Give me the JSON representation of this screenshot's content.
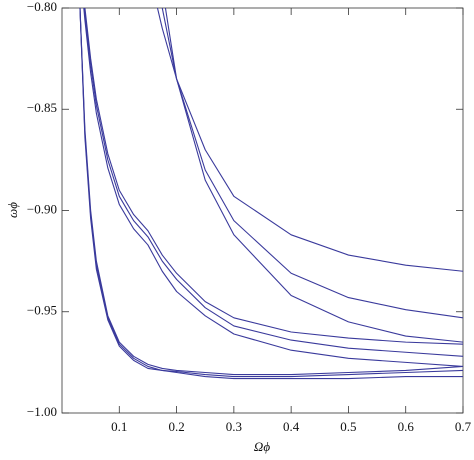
{
  "chart_data": {
    "type": "line",
    "x_label": "Ωϕ",
    "y_label": "ωϕ",
    "x": [
      0.03,
      0.04,
      0.05,
      0.06,
      0.08,
      0.1,
      0.125,
      0.15,
      0.175,
      0.2,
      0.25,
      0.3,
      0.4,
      0.5,
      0.6,
      0.7
    ],
    "series": [
      {
        "color": "#3a3a9c",
        "values": [
          -0.79,
          -0.86,
          -0.9,
          -0.925,
          -0.952,
          -0.965,
          -0.972,
          -0.976,
          -0.978,
          -0.979,
          -0.98,
          -0.981,
          -0.981,
          -0.98,
          -0.979,
          -0.977
        ]
      },
      {
        "color": "#3a3a9c",
        "values": [
          -0.79,
          -0.862,
          -0.902,
          -0.927,
          -0.953,
          -0.966,
          -0.973,
          -0.977,
          -0.979,
          -0.9795,
          -0.981,
          -0.982,
          -0.982,
          -0.981,
          -0.98,
          -0.979
        ]
      },
      {
        "color": "#3a3a9c",
        "values": [
          -0.79,
          -0.864,
          -0.904,
          -0.929,
          -0.954,
          -0.967,
          -0.974,
          -0.978,
          -0.979,
          -0.98,
          -0.982,
          -0.983,
          -0.983,
          -0.983,
          -0.982,
          -0.982
        ]
      },
      {
        "color": "#3a3a9c",
        "values": [
          -0.77,
          -0.8,
          -0.825,
          -0.845,
          -0.872,
          -0.89,
          -0.902,
          -0.91,
          -0.922,
          -0.931,
          -0.945,
          -0.953,
          -0.96,
          -0.963,
          -0.965,
          -0.966
        ]
      },
      {
        "color": "#3a3a9c",
        "values": [
          -0.772,
          -0.803,
          -0.828,
          -0.848,
          -0.875,
          -0.893,
          -0.905,
          -0.913,
          -0.925,
          -0.934,
          -0.948,
          -0.957,
          -0.964,
          -0.968,
          -0.97,
          -0.972
        ]
      },
      {
        "color": "#3a3a9c",
        "values": [
          -0.775,
          -0.806,
          -0.832,
          -0.852,
          -0.879,
          -0.897,
          -0.909,
          -0.917,
          -0.93,
          -0.94,
          -0.952,
          -0.961,
          -0.969,
          -0.973,
          -0.975,
          -0.977
        ]
      },
      {
        "color": "#3a3a9c",
        "values": [
          null,
          null,
          null,
          null,
          null,
          null,
          null,
          -0.78,
          -0.81,
          -0.835,
          -0.87,
          -0.893,
          -0.912,
          -0.922,
          -0.927,
          -0.93
        ]
      },
      {
        "color": "#3a3a9c",
        "values": [
          null,
          null,
          null,
          null,
          null,
          null,
          null,
          -0.76,
          -0.8,
          -0.835,
          -0.88,
          -0.905,
          -0.931,
          -0.943,
          -0.949,
          -0.953
        ]
      },
      {
        "color": "#3a3a9c",
        "values": [
          null,
          null,
          null,
          null,
          null,
          null,
          null,
          null,
          -0.79,
          -0.835,
          -0.885,
          -0.912,
          -0.942,
          -0.955,
          -0.962,
          -0.965
        ]
      }
    ],
    "xlim": [
      0,
      0.7
    ],
    "ylim": [
      -1.0,
      -0.8
    ],
    "xticks": [
      0.1,
      0.2,
      0.3,
      0.4,
      0.5,
      0.6,
      0.7
    ],
    "yticks": [
      {
        "value": -1.0,
        "label": "−1.00"
      },
      {
        "value": -0.95,
        "label": "−0.95"
      },
      {
        "value": -0.9,
        "label": "−0.90"
      },
      {
        "value": -0.85,
        "label": "−0.85"
      },
      {
        "value": -0.8,
        "label": "−0.80"
      }
    ]
  }
}
